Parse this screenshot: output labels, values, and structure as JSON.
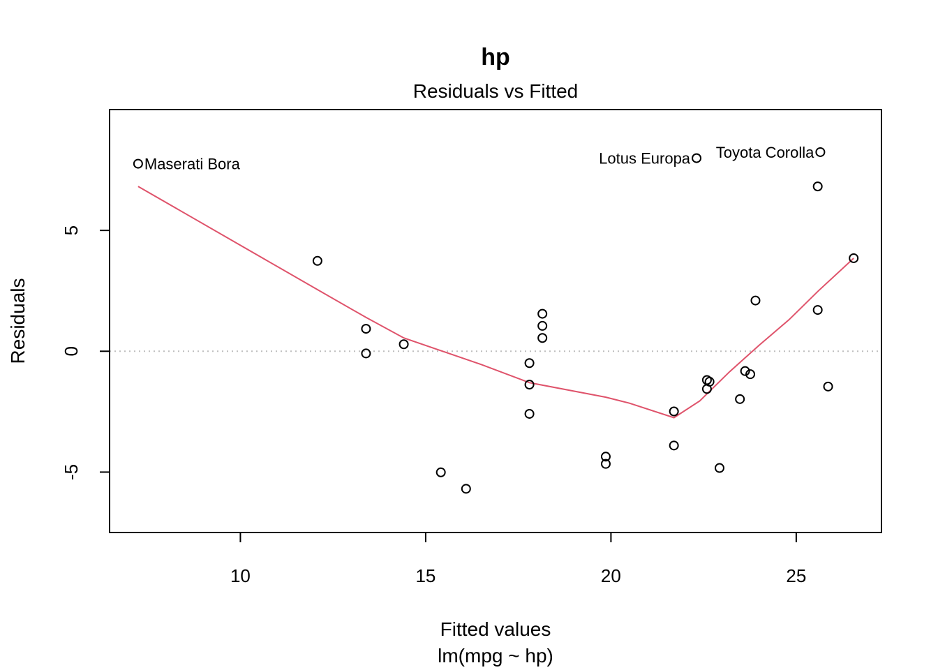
{
  "chart_data": {
    "type": "scatter",
    "outer_title": "hp",
    "title": "Residuals vs Fitted",
    "xlabel": "Fitted values",
    "xlabel_sub": "lm(mpg ~ hp)",
    "ylabel": "Residuals",
    "xlim": [
      6.47,
      27.3
    ],
    "ylim": [
      -7.5,
      10.0
    ],
    "xticks": [
      10,
      15,
      20,
      25
    ],
    "yticks": [
      -5,
      0,
      5
    ],
    "reference_line": 0,
    "point_style": "open-circle",
    "points": [
      {
        "x": 7.24,
        "y": 7.76,
        "label": "Maserati Bora",
        "label_side": "right"
      },
      {
        "x": 12.08,
        "y": 3.74
      },
      {
        "x": 13.39,
        "y": 0.93
      },
      {
        "x": 13.39,
        "y": -0.09
      },
      {
        "x": 14.41,
        "y": 0.29
      },
      {
        "x": 15.41,
        "y": -5.01
      },
      {
        "x": 16.09,
        "y": -5.69
      },
      {
        "x": 17.8,
        "y": -0.49
      },
      {
        "x": 17.8,
        "y": -1.38
      },
      {
        "x": 17.8,
        "y": -2.59
      },
      {
        "x": 18.15,
        "y": 1.55
      },
      {
        "x": 18.15,
        "y": 1.05
      },
      {
        "x": 18.15,
        "y": 0.55
      },
      {
        "x": 19.86,
        "y": -4.36
      },
      {
        "x": 19.86,
        "y": -4.66
      },
      {
        "x": 21.7,
        "y": -2.49
      },
      {
        "x": 21.7,
        "y": -3.9
      },
      {
        "x": 22.31,
        "y": 7.99,
        "label": "Lotus Europa",
        "label_side": "left"
      },
      {
        "x": 22.59,
        "y": -1.19
      },
      {
        "x": 22.66,
        "y": -1.26
      },
      {
        "x": 22.59,
        "y": -1.56
      },
      {
        "x": 22.93,
        "y": -4.83
      },
      {
        "x": 23.48,
        "y": -1.98
      },
      {
        "x": 23.62,
        "y": -0.82
      },
      {
        "x": 23.76,
        "y": -0.95
      },
      {
        "x": 23.9,
        "y": 2.1
      },
      {
        "x": 25.58,
        "y": 6.82
      },
      {
        "x": 25.58,
        "y": 1.71
      },
      {
        "x": 25.65,
        "y": 8.24,
        "label": "Toyota Corolla",
        "label_side": "left"
      },
      {
        "x": 25.86,
        "y": -1.46
      },
      {
        "x": 26.55,
        "y": 3.85
      }
    ],
    "smoother": {
      "color": "#DF536B",
      "x": [
        7.24,
        12.08,
        13.39,
        14.41,
        16.5,
        17.8,
        19.86,
        20.5,
        21.7,
        22.4,
        23.2,
        24.0,
        24.8,
        25.6,
        26.55
      ],
      "y": [
        6.82,
        2.55,
        1.4,
        0.55,
        -0.55,
        -1.3,
        -1.9,
        -2.15,
        -2.75,
        -2.05,
        -0.85,
        0.25,
        1.3,
        2.5,
        3.85
      ]
    }
  }
}
